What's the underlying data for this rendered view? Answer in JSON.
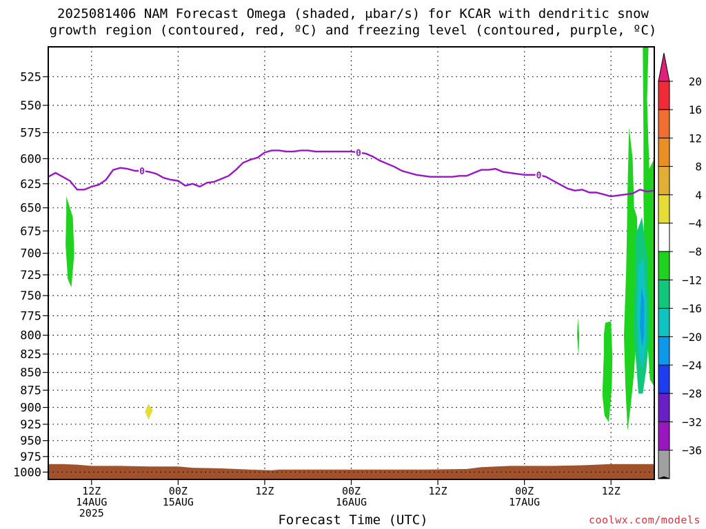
{
  "title_line1": "2025081406 NAM Forecast Omega (shaded, μbar/s) for KCAR with dendritic snow",
  "title_line2": "growth region (contoured, red, ºC) and freezing level (contoured, purple, ºC)",
  "credit": "coolwx.com/models",
  "chart_data": {
    "type": "heatmap",
    "xlabel": "Forecast Time (UTC)",
    "x_range_hours": [
      0,
      84
    ],
    "x_ticks": [
      {
        "hour": 6,
        "line1": "12Z",
        "line2": "14AUG",
        "line3": "2025"
      },
      {
        "hour": 18,
        "line1": "00Z",
        "line2": "15AUG",
        "line3": ""
      },
      {
        "hour": 30,
        "line1": "12Z",
        "line2": "",
        "line3": ""
      },
      {
        "hour": 42,
        "line1": "00Z",
        "line2": "16AUG",
        "line3": ""
      },
      {
        "hour": 54,
        "line1": "12Z",
        "line2": "",
        "line3": ""
      },
      {
        "hour": 66,
        "line1": "00Z",
        "line2": "17AUG",
        "line3": ""
      },
      {
        "hour": 78,
        "line1": "12Z",
        "line2": "",
        "line3": ""
      }
    ],
    "y_range_hpa": [
      1012,
      500
    ],
    "y_ticks": [
      525,
      550,
      575,
      600,
      625,
      650,
      675,
      700,
      725,
      750,
      775,
      800,
      825,
      850,
      875,
      900,
      925,
      950,
      975,
      1000
    ],
    "y_scale": "log-pressure",
    "grid": "dotted",
    "colorbar": {
      "labels": [
        "20",
        "16",
        "12",
        "8",
        "4",
        "−4",
        "−8",
        "−12",
        "−16",
        "−20",
        "−24",
        "−28",
        "−32",
        "−36"
      ],
      "bin_colors": [
        "#ee2b36",
        "#f06f30",
        "#ea8f25",
        "#e2ae34",
        "#e6dc38",
        "#ffffff",
        "#1ed21e",
        "#10c77c",
        "#0fc4c0",
        "#0e98ea",
        "#1e3cf0",
        "#6a1ec6",
        "#9a16be",
        "#a0a0a0"
      ],
      "top_arrow_color": "#e0207a",
      "bottom_arrow_color": "#000000"
    },
    "freezing_level": {
      "label": "0",
      "color": "#9a14c8",
      "label_hours": [
        13,
        43,
        68
      ],
      "points": [
        [
          0,
          618
        ],
        [
          1,
          614
        ],
        [
          2,
          618
        ],
        [
          3,
          622
        ],
        [
          4,
          631
        ],
        [
          5,
          631
        ],
        [
          6,
          628
        ],
        [
          7,
          626
        ],
        [
          8,
          621
        ],
        [
          9,
          611
        ],
        [
          10,
          609
        ],
        [
          11,
          610
        ],
        [
          12,
          612
        ],
        [
          13,
          612
        ],
        [
          14,
          613
        ],
        [
          15,
          615
        ],
        [
          16,
          619
        ],
        [
          17,
          621
        ],
        [
          18,
          622
        ],
        [
          19,
          627
        ],
        [
          20,
          625
        ],
        [
          21,
          628
        ],
        [
          22,
          624
        ],
        [
          23,
          623
        ],
        [
          24,
          620
        ],
        [
          25,
          617
        ],
        [
          26,
          611
        ],
        [
          27,
          604
        ],
        [
          28,
          601
        ],
        [
          29,
          599
        ],
        [
          30,
          594
        ],
        [
          31,
          592
        ],
        [
          32,
          592
        ],
        [
          33,
          593
        ],
        [
          34,
          593
        ],
        [
          35,
          592
        ],
        [
          36,
          592
        ],
        [
          37,
          593
        ],
        [
          38,
          593
        ],
        [
          39,
          593
        ],
        [
          40,
          593
        ],
        [
          41,
          593
        ],
        [
          42,
          593
        ],
        [
          43,
          594
        ],
        [
          44,
          595
        ],
        [
          45,
          598
        ],
        [
          46,
          602
        ],
        [
          47,
          605
        ],
        [
          48,
          608
        ],
        [
          49,
          612
        ],
        [
          50,
          614
        ],
        [
          51,
          616
        ],
        [
          52,
          617
        ],
        [
          53,
          618
        ],
        [
          54,
          618
        ],
        [
          55,
          618
        ],
        [
          56,
          618
        ],
        [
          57,
          617
        ],
        [
          58,
          617
        ],
        [
          59,
          614
        ],
        [
          60,
          611
        ],
        [
          61,
          611
        ],
        [
          62,
          610
        ],
        [
          63,
          613
        ],
        [
          64,
          614
        ],
        [
          65,
          615
        ],
        [
          66,
          616
        ],
        [
          67,
          616
        ],
        [
          68,
          616
        ],
        [
          69,
          618
        ],
        [
          70,
          622
        ],
        [
          71,
          626
        ],
        [
          72,
          630
        ],
        [
          73,
          632
        ],
        [
          74,
          631
        ],
        [
          75,
          634
        ],
        [
          76,
          634
        ],
        [
          77,
          636
        ],
        [
          78,
          638
        ],
        [
          79,
          637
        ],
        [
          80,
          636
        ],
        [
          81,
          635
        ],
        [
          82,
          631
        ],
        [
          83,
          633
        ],
        [
          84,
          632
        ]
      ]
    },
    "omega_regions": [
      {
        "value_bin": "-4 to -8",
        "color": "#1ed21e",
        "points": [
          [
            2.5,
            638
          ],
          [
            3.4,
            660
          ],
          [
            3.6,
            700
          ],
          [
            3.2,
            740
          ],
          [
            2.7,
            730
          ],
          [
            2.4,
            690
          ],
          [
            2.5,
            655
          ]
        ]
      },
      {
        "value_bin": "4 to 8",
        "color": "#e6dc38",
        "points": [
          [
            13.9,
            895
          ],
          [
            14.5,
            904
          ],
          [
            13.9,
            918
          ],
          [
            13.4,
            906
          ]
        ]
      },
      {
        "value_bin": "-4 to -8",
        "color": "#1ed21e",
        "points": [
          [
            73.4,
            778
          ],
          [
            73.6,
            800
          ],
          [
            73.5,
            828
          ],
          [
            73.3,
            800
          ]
        ]
      },
      {
        "value_bin": "-4 to -8",
        "color": "#1ed21e",
        "points": [
          [
            77.2,
            784
          ],
          [
            78.0,
            782
          ],
          [
            78.2,
            830
          ],
          [
            78.1,
            872
          ],
          [
            77.7,
            922
          ],
          [
            77.1,
            912
          ],
          [
            76.8,
            882
          ],
          [
            77.0,
            825
          ],
          [
            77.0,
            800
          ]
        ]
      },
      {
        "value_bin": "-4 to -8",
        "color": "#1ed21e",
        "points": [
          [
            80.3,
            628
          ],
          [
            80.5,
            570
          ],
          [
            81.0,
            600
          ],
          [
            81.2,
            650
          ],
          [
            81.6,
            660
          ],
          [
            81.8,
            720
          ],
          [
            81.5,
            800
          ],
          [
            81.2,
            850
          ],
          [
            80.7,
            900
          ],
          [
            80.3,
            935
          ],
          [
            80.0,
            870
          ],
          [
            79.8,
            800
          ],
          [
            80.1,
            720
          ],
          [
            80.2,
            680
          ]
        ]
      },
      {
        "value_bin": "-4 to -8",
        "color": "#1ed21e",
        "points": [
          [
            82.4,
            500
          ],
          [
            83.2,
            500
          ],
          [
            83.0,
            545
          ],
          [
            83.3,
            610
          ],
          [
            84.0,
            600
          ],
          [
            84.0,
            870
          ],
          [
            83.4,
            860
          ],
          [
            83.0,
            800
          ],
          [
            82.9,
            740
          ],
          [
            82.6,
            690
          ],
          [
            82.5,
            640
          ],
          [
            82.5,
            580
          ]
        ]
      },
      {
        "value_bin": "-8 to -12",
        "color": "#10c77c",
        "points": [
          [
            81.4,
            680
          ],
          [
            82.3,
            660
          ],
          [
            83.1,
            710
          ],
          [
            83.3,
            800
          ],
          [
            82.9,
            845
          ],
          [
            82.4,
            880
          ],
          [
            81.8,
            880
          ],
          [
            81.2,
            800
          ]
        ]
      },
      {
        "value_bin": "-12 to -16",
        "color": "#0fc4c0",
        "points": [
          [
            81.8,
            715
          ],
          [
            82.5,
            705
          ],
          [
            82.9,
            760
          ],
          [
            82.8,
            815
          ],
          [
            82.4,
            845
          ],
          [
            81.9,
            830
          ],
          [
            81.6,
            770
          ]
        ]
      },
      {
        "value_bin": "-16 to -20",
        "color": "#0e98ea",
        "points": [
          [
            82.2,
            740
          ],
          [
            82.6,
            755
          ],
          [
            82.6,
            800
          ],
          [
            82.3,
            815
          ],
          [
            82.0,
            790
          ]
        ]
      }
    ]
  }
}
